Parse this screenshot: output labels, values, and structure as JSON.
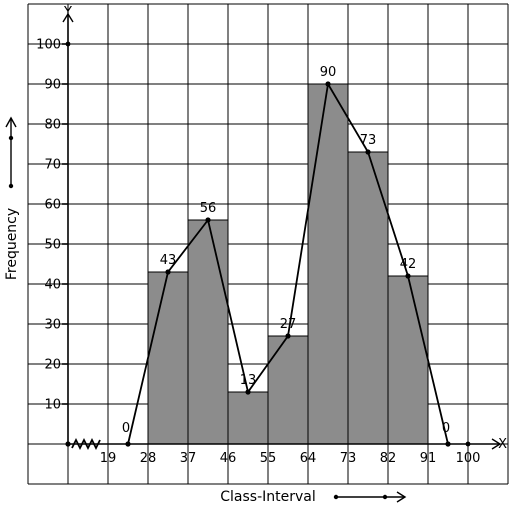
{
  "chart_data": {
    "type": "bar",
    "subtype": "histogram-with-frequency-polygon",
    "x_tick_labels": [
      "19",
      "28",
      "37",
      "46",
      "55",
      "64",
      "73",
      "82",
      "91",
      "100"
    ],
    "y_tick_labels": [
      "10",
      "20",
      "30",
      "40",
      "50",
      "60",
      "70",
      "80",
      "90",
      "100"
    ],
    "bins": [
      {
        "from": 28,
        "to": 37,
        "frequency": 43
      },
      {
        "from": 37,
        "to": 46,
        "frequency": 56
      },
      {
        "from": 46,
        "to": 55,
        "frequency": 13
      },
      {
        "from": 55,
        "to": 64,
        "frequency": 27
      },
      {
        "from": 64,
        "to": 73,
        "frequency": 90
      },
      {
        "from": 73,
        "to": 82,
        "frequency": 73
      },
      {
        "from": 82,
        "to": 91,
        "frequency": 42
      }
    ],
    "polygon": {
      "x": [
        23.5,
        32.5,
        41.5,
        50.5,
        59.5,
        68.5,
        77.5,
        86.5,
        95.5
      ],
      "y": [
        0,
        43,
        56,
        13,
        27,
        90,
        73,
        42,
        0
      ],
      "labels": [
        "0",
        "43",
        "56",
        "13",
        "27",
        "90",
        "73",
        "42",
        "0"
      ]
    },
    "xlabel": "Class-Interval",
    "ylabel": "Frequency",
    "x_axis_letter": "X",
    "y_axis_letter": "Y",
    "ylim": [
      0,
      100
    ],
    "grid": true,
    "axis_break": true,
    "colors": {
      "bar": "#8c8c8c",
      "line": "#000000"
    }
  }
}
